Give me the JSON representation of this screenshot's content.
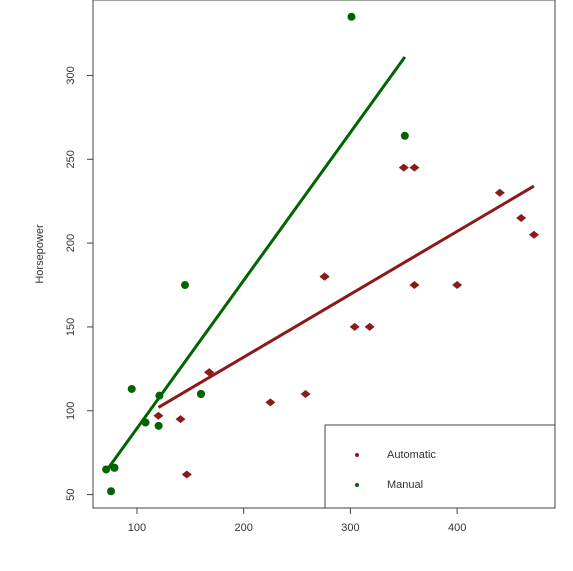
{
  "chart_data": {
    "type": "scatter",
    "y_label": "Horsepower",
    "xlim": [
      58.8,
      491.7
    ],
    "ylim": [
      42,
      345
    ],
    "xticks": [
      100,
      200,
      300,
      400
    ],
    "yticks": [
      50,
      100,
      150,
      200,
      250,
      300
    ],
    "grid": false,
    "legend": "bottom-right",
    "series": [
      {
        "name": "Automatic",
        "color": "#8b1a1a",
        "marker": "diamond",
        "x": [
          258,
          360,
          225,
          360,
          146.7,
          140.8,
          167.6,
          167.6,
          275.8,
          275.8,
          275.8,
          472,
          460,
          440,
          120.1,
          318,
          304,
          350,
          400
        ],
        "values": [
          110,
          175,
          105,
          245,
          62,
          95,
          123,
          123,
          180,
          180,
          180,
          205,
          215,
          230,
          97,
          150,
          150,
          245,
          175
        ],
        "fit": {
          "x": [
            120.1,
            472
          ],
          "values": [
            102,
            234
          ]
        }
      },
      {
        "name": "Manual",
        "color": "#006400",
        "marker": "circle",
        "x": [
          160,
          160,
          108,
          78.7,
          75.7,
          71.1,
          79,
          120.3,
          95.1,
          351,
          145,
          301,
          121
        ],
        "values": [
          110,
          110,
          93,
          66,
          52,
          65,
          66,
          91,
          113,
          264,
          175,
          335,
          109
        ],
        "fit": {
          "x": [
            71.1,
            351
          ],
          "values": [
            64,
            311
          ]
        }
      }
    ]
  }
}
